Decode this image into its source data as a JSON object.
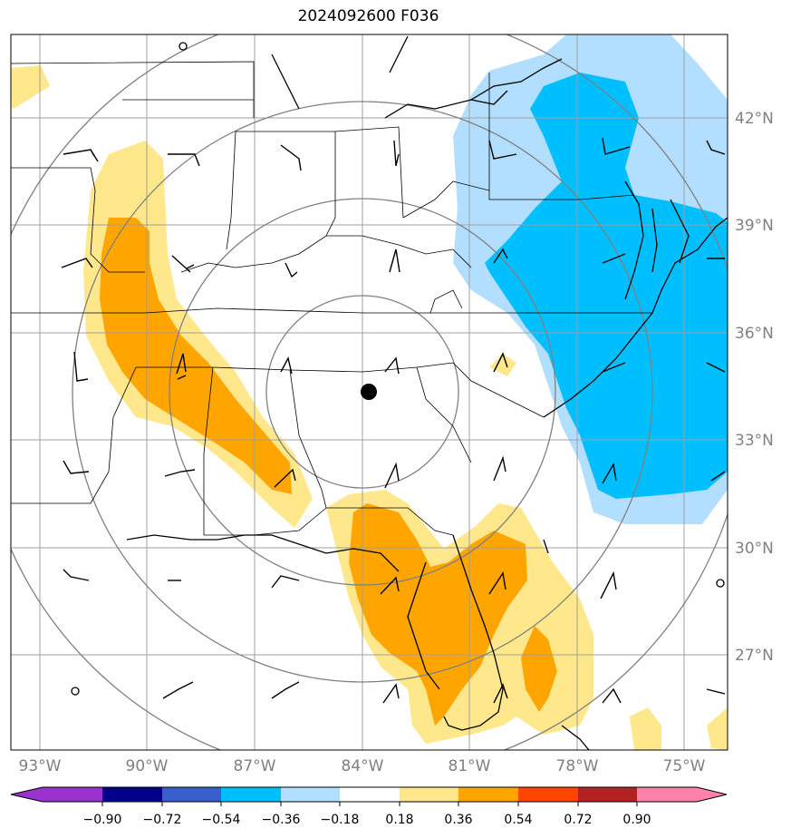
{
  "title": "2024092600 F036",
  "lon_labels": [
    "93°W",
    "90°W",
    "87°W",
    "84°W",
    "81°W",
    "78°W",
    "75°W"
  ],
  "lat_labels": [
    "42°N",
    "39°N",
    "36°N",
    "33°N",
    "30°N",
    "27°N"
  ],
  "colorbar": {
    "tick_labels": [
      "−0.90",
      "−0.72",
      "−0.54",
      "−0.36",
      "−0.18",
      "0.18",
      "0.36",
      "0.54",
      "0.72",
      "0.90"
    ],
    "colors": [
      "#9a32cd",
      "#00008b",
      "#3a5fcd",
      "#00bfff",
      "#b2dfff",
      "#ffffff",
      "#ffe88c",
      "#ffa500",
      "#ff4500",
      "#b22222",
      "#ff82ab"
    ]
  },
  "colors": {
    "light_blue": "#b2dfff",
    "blue": "#00bfff",
    "light_yellow": "#ffe88c",
    "orange": "#ffa500",
    "grid": "#a0a0a0",
    "range_rings": "#808080"
  },
  "center_marker": "black-dot"
}
